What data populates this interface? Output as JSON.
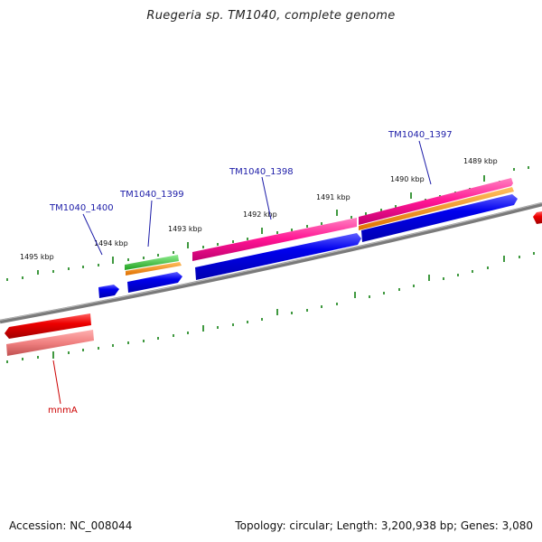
{
  "header": {
    "title": "Ruegeria sp. TM1040, complete genome"
  },
  "footer": {
    "accession": "Accession: NC_008044",
    "topology": "Topology: circular; Length: 3,200,938 bp; Genes: 3,080"
  },
  "map": {
    "kbp_labels": [
      "1489 kbp",
      "1490 kbp",
      "1491 kbp",
      "1492 kbp",
      "1493 kbp",
      "1494 kbp",
      "1495 kbp"
    ],
    "gene_labels": [
      "TM1040_1397",
      "TM1040_1398",
      "TM1040_1399",
      "TM1040_1400",
      "mnmA"
    ],
    "colors": {
      "cds_forward": "#0000ee",
      "gene": "#ff1493",
      "rna": "#ff8c00",
      "misc": "#33cc33",
      "reverse_gene": "#ee0000",
      "reverse_feature": "#f08080",
      "backbone": "#808080",
      "tick": "#007700",
      "gene_label": "#1c1ca8"
    }
  }
}
